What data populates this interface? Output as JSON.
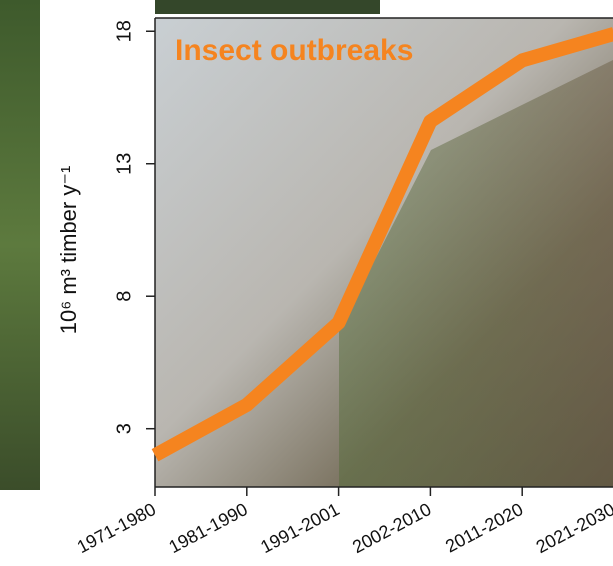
{
  "chart_data": {
    "type": "line",
    "annotation": "Insect outbreaks",
    "y_label": "10⁶ m³ timber y⁻¹",
    "categories": [
      "1971-1980",
      "1981-1990",
      "1991-2001",
      "2002-2010",
      "2011-2020",
      "2021-2030"
    ],
    "series": [
      {
        "name": "Insect outbreaks",
        "color": "#f5841f",
        "values": [
          2.0,
          3.9,
          7.0,
          14.6,
          16.9,
          17.9
        ]
      }
    ],
    "ylim": [
      0.8,
      18.5
    ],
    "yticks": [
      3,
      8,
      13,
      18
    ]
  }
}
